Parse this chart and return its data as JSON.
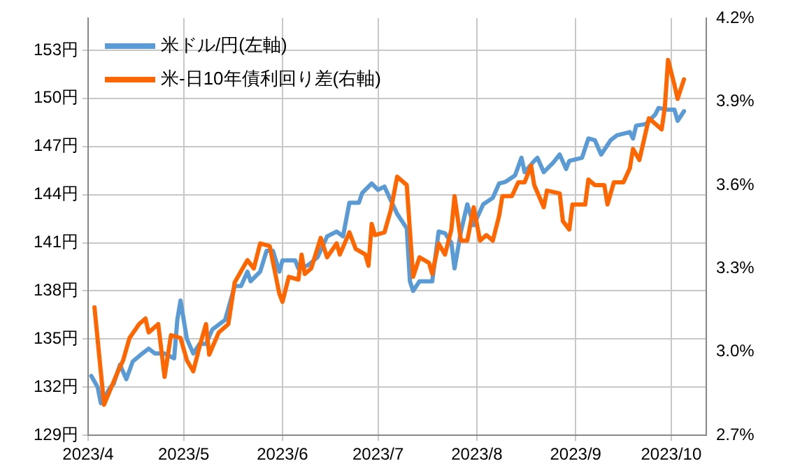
{
  "chart_data": {
    "type": "line",
    "legend": "top left",
    "grid": true,
    "marker": "none",
    "line_style": "solid",
    "xlim": [
      "2023-04-01",
      "2023-10-12"
    ],
    "xticks": [
      {
        "value": "2023-04-01",
        "label": "2023/4"
      },
      {
        "value": "2023-05-01",
        "label": "2023/5"
      },
      {
        "value": "2023-06-01",
        "label": "2023/6"
      },
      {
        "value": "2023-07-01",
        "label": "2023/7"
      },
      {
        "value": "2023-08-01",
        "label": "2023/8"
      },
      {
        "value": "2023-09-01",
        "label": "2023/9"
      },
      {
        "value": "2023-10-01",
        "label": "2023/10"
      }
    ],
    "ylim": [
      129,
      155
    ],
    "yticks": [
      {
        "value": 129,
        "label": "129円"
      },
      {
        "value": 132,
        "label": "132円"
      },
      {
        "value": 135,
        "label": "135円"
      },
      {
        "value": 138,
        "label": "138円"
      },
      {
        "value": 141,
        "label": "141円"
      },
      {
        "value": 144,
        "label": "144円"
      },
      {
        "value": 147,
        "label": "147円"
      },
      {
        "value": 150,
        "label": "150円"
      },
      {
        "value": 153,
        "label": "153円"
      }
    ],
    "y2lim": [
      2.7,
      4.2
    ],
    "y2ticks": [
      {
        "value": 2.7,
        "label": "2.7%"
      },
      {
        "value": 3.0,
        "label": "3.0%"
      },
      {
        "value": 3.3,
        "label": "3.3%"
      },
      {
        "value": 3.6,
        "label": "3.6%"
      },
      {
        "value": 3.9,
        "label": "3.9%"
      },
      {
        "value": 4.2,
        "label": "4.2%"
      }
    ],
    "series": [
      {
        "name": "米ドル/円(左軸)",
        "color": "#5b9bd5",
        "axis": "y",
        "x": [
          "2023-04-02",
          "2023-04-04",
          "2023-04-05",
          "2023-04-08",
          "2023-04-09",
          "2023-04-11",
          "2023-04-13",
          "2023-04-15",
          "2023-04-18",
          "2023-04-20",
          "2023-04-22",
          "2023-04-25",
          "2023-04-28",
          "2023-04-29",
          "2023-04-30",
          "2023-05-02",
          "2023-05-04",
          "2023-05-06",
          "2023-05-08",
          "2023-05-10",
          "2023-05-14",
          "2023-05-17",
          "2023-05-19",
          "2023-05-21",
          "2023-05-22",
          "2023-05-25",
          "2023-05-27",
          "2023-05-29",
          "2023-05-31",
          "2023-06-01",
          "2023-06-05",
          "2023-06-06",
          "2023-06-09",
          "2023-06-12",
          "2023-06-15",
          "2023-06-18",
          "2023-06-20",
          "2023-06-22",
          "2023-06-25",
          "2023-06-26",
          "2023-06-29",
          "2023-07-01",
          "2023-07-03",
          "2023-07-07",
          "2023-07-10",
          "2023-07-11",
          "2023-07-12",
          "2023-07-14",
          "2023-07-18",
          "2023-07-20",
          "2023-07-22",
          "2023-07-24",
          "2023-07-25",
          "2023-07-27",
          "2023-07-29",
          "2023-07-31",
          "2023-08-03",
          "2023-08-06",
          "2023-08-08",
          "2023-08-10",
          "2023-08-13",
          "2023-08-15",
          "2023-08-16",
          "2023-08-19",
          "2023-08-20",
          "2023-08-22",
          "2023-08-25",
          "2023-08-27",
          "2023-08-29",
          "2023-08-30",
          "2023-09-03",
          "2023-09-05",
          "2023-09-07",
          "2023-09-09",
          "2023-09-12",
          "2023-09-14",
          "2023-09-18",
          "2023-09-19",
          "2023-09-20",
          "2023-09-23",
          "2023-09-26",
          "2023-09-27",
          "2023-09-30",
          "2023-10-02",
          "2023-10-03",
          "2023-10-05"
        ],
        "values": [
          132.7,
          132.0,
          131.0,
          132.0,
          132.2,
          133.4,
          132.5,
          133.6,
          134.1,
          134.4,
          134.1,
          134.1,
          133.8,
          136.2,
          137.4,
          135.0,
          134.1,
          134.7,
          134.7,
          135.6,
          136.2,
          138.3,
          138.3,
          139.2,
          138.6,
          139.2,
          140.5,
          140.5,
          139.2,
          139.9,
          139.9,
          139.4,
          139.6,
          140.1,
          141.4,
          141.7,
          141.4,
          143.5,
          143.5,
          144.1,
          144.7,
          144.3,
          144.5,
          142.8,
          141.9,
          138.6,
          138.0,
          138.6,
          138.6,
          141.7,
          141.6,
          141.0,
          139.4,
          141.7,
          143.4,
          142.1,
          143.4,
          143.8,
          144.7,
          144.8,
          145.2,
          146.3,
          145.4,
          146.1,
          146.3,
          145.4,
          146.0,
          146.5,
          145.6,
          146.1,
          146.3,
          147.5,
          147.4,
          146.5,
          147.4,
          147.7,
          147.9,
          147.5,
          148.3,
          148.4,
          149.0,
          149.4,
          149.3,
          149.3,
          148.6,
          149.2
        ]
      },
      {
        "name": "米-日10年債利回り差(右軸)",
        "color": "#ff6600",
        "axis": "y2",
        "x": [
          "2023-04-03",
          "2023-04-06",
          "2023-04-10",
          "2023-04-12",
          "2023-04-14",
          "2023-04-17",
          "2023-04-19",
          "2023-04-20",
          "2023-04-23",
          "2023-04-25",
          "2023-04-27",
          "2023-04-30",
          "2023-05-02",
          "2023-05-04",
          "2023-05-06",
          "2023-05-08",
          "2023-05-09",
          "2023-05-12",
          "2023-05-15",
          "2023-05-17",
          "2023-05-19",
          "2023-05-21",
          "2023-05-23",
          "2023-05-25",
          "2023-05-28",
          "2023-05-31",
          "2023-06-01",
          "2023-06-03",
          "2023-06-06",
          "2023-06-07",
          "2023-06-08",
          "2023-06-10",
          "2023-06-13",
          "2023-06-15",
          "2023-06-18",
          "2023-06-19",
          "2023-06-22",
          "2023-06-24",
          "2023-06-27",
          "2023-06-28",
          "2023-06-29",
          "2023-06-30",
          "2023-07-03",
          "2023-07-05",
          "2023-07-07",
          "2023-07-10",
          "2023-07-12",
          "2023-07-14",
          "2023-07-17",
          "2023-07-18",
          "2023-07-20",
          "2023-07-22",
          "2023-07-24",
          "2023-07-25",
          "2023-07-27",
          "2023-07-29",
          "2023-07-31",
          "2023-08-02",
          "2023-08-04",
          "2023-08-06",
          "2023-08-08",
          "2023-08-09",
          "2023-08-12",
          "2023-08-14",
          "2023-08-16",
          "2023-08-18",
          "2023-08-19",
          "2023-08-22",
          "2023-08-23",
          "2023-08-27",
          "2023-08-28",
          "2023-08-30",
          "2023-08-31",
          "2023-09-04",
          "2023-09-05",
          "2023-09-07",
          "2023-09-10",
          "2023-09-11",
          "2023-09-13",
          "2023-09-16",
          "2023-09-18",
          "2023-09-19",
          "2023-09-21",
          "2023-09-23",
          "2023-09-24",
          "2023-09-27",
          "2023-09-28",
          "2023-09-29",
          "2023-09-30",
          "2023-10-02",
          "2023-10-03",
          "2023-10-05"
        ],
        "values": [
          3.16,
          2.81,
          2.92,
          2.97,
          3.05,
          3.1,
          3.12,
          3.07,
          3.1,
          2.91,
          3.06,
          3.05,
          2.97,
          2.93,
          3.02,
          3.1,
          2.99,
          3.07,
          3.1,
          3.25,
          3.29,
          3.33,
          3.3,
          3.39,
          3.38,
          3.21,
          3.18,
          3.27,
          3.26,
          3.35,
          3.28,
          3.3,
          3.41,
          3.34,
          3.39,
          3.35,
          3.43,
          3.37,
          3.35,
          3.31,
          3.46,
          3.42,
          3.43,
          3.51,
          3.63,
          3.6,
          3.27,
          3.34,
          3.32,
          3.28,
          3.39,
          3.35,
          3.44,
          3.56,
          3.4,
          3.4,
          3.52,
          3.4,
          3.42,
          3.4,
          3.49,
          3.56,
          3.56,
          3.61,
          3.61,
          3.67,
          3.6,
          3.52,
          3.58,
          3.57,
          3.47,
          3.44,
          3.53,
          3.53,
          3.62,
          3.6,
          3.6,
          3.53,
          3.61,
          3.61,
          3.66,
          3.73,
          3.69,
          3.79,
          3.84,
          3.81,
          3.8,
          3.88,
          4.05,
          3.96,
          3.91,
          3.98
        ]
      }
    ]
  }
}
